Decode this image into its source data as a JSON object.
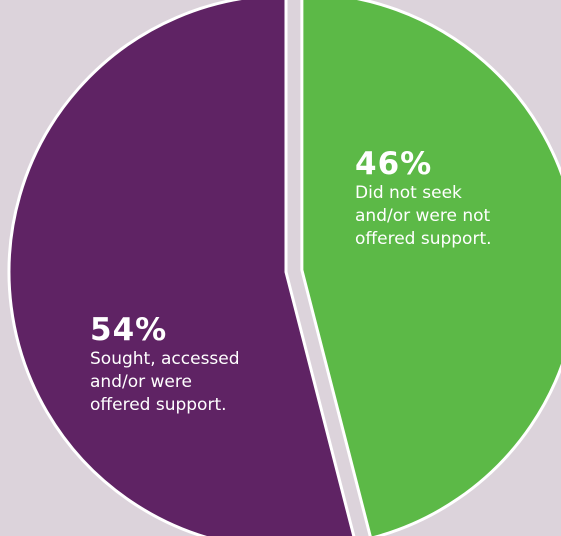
{
  "chart_data": {
    "type": "pie",
    "slices": [
      {
        "value": 46,
        "label": "46%",
        "description": "Did not seek and/or were not offered support.",
        "description_lines": "Did not seek\nand/or were not\noffered support.",
        "color": "#5cb947",
        "exploded": true
      },
      {
        "value": 54,
        "label": "54%",
        "description": "Sought, accessed and/or were offered support.",
        "description_lines": "Sought, accessed\nand/or were\noffered support.",
        "color": "#5f2364",
        "exploded": false
      }
    ],
    "start_angle_deg": 0,
    "direction": "clockwise",
    "slice_border_color": "#ffffff",
    "background": "#dcd3db"
  }
}
